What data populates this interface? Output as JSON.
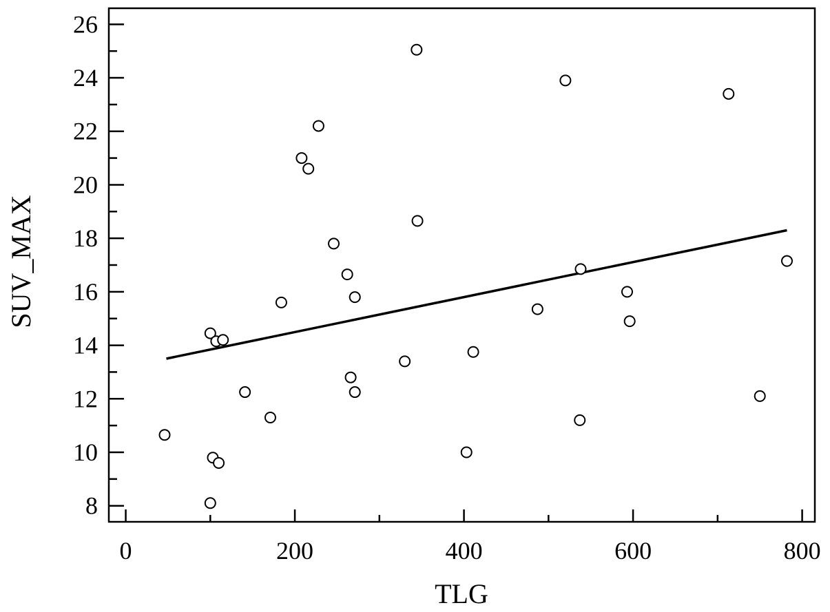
{
  "chart_data": {
    "type": "scatter",
    "xlabel": "TLG",
    "ylabel": "SUV_MAX",
    "xlim": [
      -20,
      815
    ],
    "ylim": [
      7.4,
      26.6
    ],
    "x_ticks": [
      0,
      200,
      400,
      600,
      800
    ],
    "y_ticks": [
      8,
      10,
      12,
      14,
      16,
      18,
      20,
      22,
      24,
      26
    ],
    "x_minor_step": 100,
    "y_minor_step": 1,
    "grid": false,
    "series": [
      {
        "marker": "open-circle",
        "points": [
          {
            "x": 46,
            "y": 10.65
          },
          {
            "x": 100,
            "y": 8.1
          },
          {
            "x": 100,
            "y": 14.45
          },
          {
            "x": 103,
            "y": 9.8
          },
          {
            "x": 107,
            "y": 14.15
          },
          {
            "x": 110,
            "y": 9.6
          },
          {
            "x": 115,
            "y": 14.2
          },
          {
            "x": 141,
            "y": 12.25
          },
          {
            "x": 171,
            "y": 11.3
          },
          {
            "x": 184,
            "y": 15.6
          },
          {
            "x": 208,
            "y": 21.0
          },
          {
            "x": 216,
            "y": 20.6
          },
          {
            "x": 228,
            "y": 22.2
          },
          {
            "x": 246,
            "y": 17.8
          },
          {
            "x": 262,
            "y": 16.65
          },
          {
            "x": 266,
            "y": 12.8
          },
          {
            "x": 271,
            "y": 12.25
          },
          {
            "x": 271,
            "y": 15.8
          },
          {
            "x": 330,
            "y": 13.4
          },
          {
            "x": 344,
            "y": 25.05
          },
          {
            "x": 345,
            "y": 18.65
          },
          {
            "x": 403,
            "y": 10.0
          },
          {
            "x": 411,
            "y": 13.75
          },
          {
            "x": 487,
            "y": 15.35
          },
          {
            "x": 520,
            "y": 23.9
          },
          {
            "x": 537,
            "y": 11.2
          },
          {
            "x": 538,
            "y": 16.85
          },
          {
            "x": 593,
            "y": 16.0
          },
          {
            "x": 596,
            "y": 14.9
          },
          {
            "x": 713,
            "y": 23.4
          },
          {
            "x": 750,
            "y": 12.1
          },
          {
            "x": 782,
            "y": 17.15
          }
        ]
      }
    ],
    "regression_line": {
      "x": [
        48,
        782
      ],
      "y": [
        13.5,
        18.3
      ]
    }
  }
}
